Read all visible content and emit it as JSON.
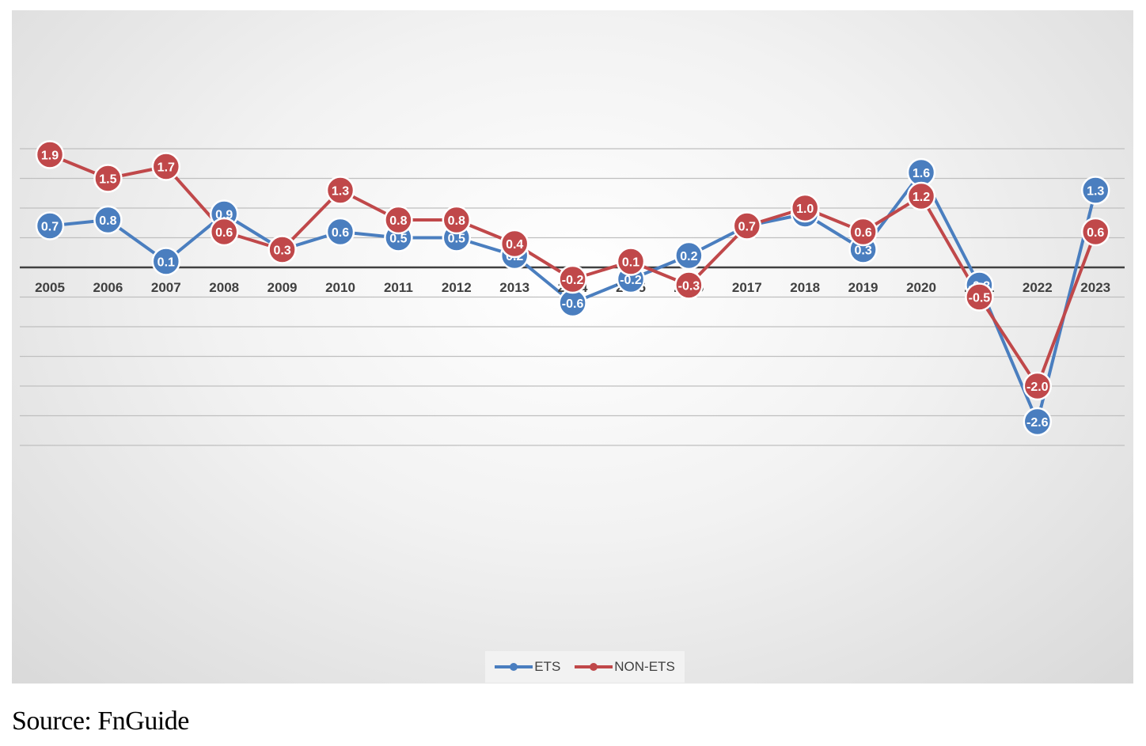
{
  "chart_data": {
    "type": "line",
    "categories": [
      "2005",
      "2006",
      "2007",
      "2008",
      "2009",
      "2010",
      "2011",
      "2012",
      "2013",
      "2014",
      "2015",
      "2016",
      "2017",
      "2018",
      "2019",
      "2020",
      "2021",
      "2022",
      "2023"
    ],
    "series": [
      {
        "name": "ETS",
        "color": "#4a7ebf",
        "values": [
          0.7,
          0.8,
          0.1,
          0.9,
          0.3,
          0.6,
          0.5,
          0.5,
          0.2,
          -0.6,
          -0.2,
          0.2,
          0.7,
          0.9,
          0.3,
          1.6,
          -0.3,
          -2.6,
          1.3
        ]
      },
      {
        "name": "NON-ETS",
        "color": "#c0484a",
        "values": [
          1.9,
          1.5,
          1.7,
          0.6,
          0.3,
          1.3,
          0.8,
          0.8,
          0.4,
          -0.2,
          0.1,
          -0.3,
          0.7,
          1.0,
          0.6,
          1.2,
          -0.5,
          -2.0,
          0.6
        ]
      }
    ],
    "ylim": [
      -3.0,
      2.0
    ],
    "grid": true,
    "legend_position": "bottom"
  },
  "source": "Source: FnGuide"
}
